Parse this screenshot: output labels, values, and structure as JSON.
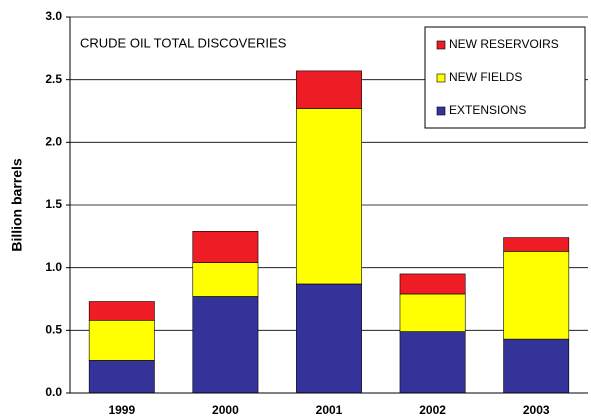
{
  "chart_data": {
    "type": "stacked_bar",
    "title": "CRUDE OIL TOTAL DISCOVERIES",
    "ylabel": "Billion barrels",
    "categories": [
      "1999",
      "2000",
      "2001",
      "2002",
      "2003"
    ],
    "series": [
      {
        "name": "EXTENSIONS",
        "color": "#333399",
        "values": [
          0.26,
          0.77,
          0.87,
          0.49,
          0.43
        ]
      },
      {
        "name": "NEW FIELDS",
        "color": "#ffff00",
        "values": [
          0.32,
          0.27,
          1.4,
          0.3,
          0.7
        ]
      },
      {
        "name": "NEW RESERVOIRS",
        "color": "#ee1c24",
        "values": [
          0.15,
          0.25,
          0.3,
          0.16,
          0.11
        ]
      }
    ],
    "ylim": [
      0,
      3.0
    ],
    "yticks": [
      {
        "value": 0,
        "label": "0.0"
      },
      0.5,
      {
        "value": 1,
        "label": "1.0"
      },
      1.5,
      {
        "value": 2,
        "label": "2.0"
      },
      2.5,
      {
        "value": 3,
        "label": "3.0"
      }
    ],
    "grid": true,
    "legend": "upper right"
  }
}
